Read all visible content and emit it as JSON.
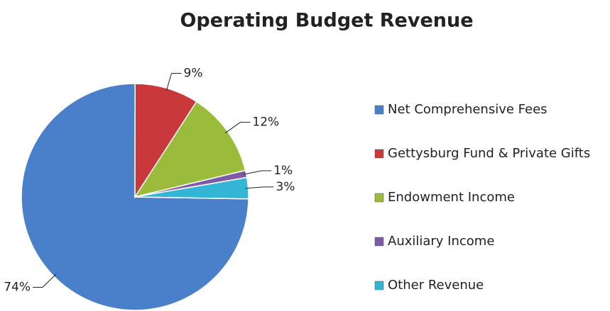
{
  "chart_data": {
    "type": "pie",
    "title": "Operating Budget Revenue",
    "categories": [
      "Net Comprehensive Fees",
      "Gettysburg Fund & Private Gifts",
      "Endowment Income",
      "Auxiliary Income",
      "Other Revenue"
    ],
    "values": [
      74,
      9,
      12,
      1,
      3
    ],
    "value_labels": [
      "74%",
      "9%",
      "12%",
      "1%",
      "3%"
    ],
    "colors": [
      "#4a7fc9",
      "#c9383a",
      "#9bbb3b",
      "#7d5aa6",
      "#33b6d6"
    ],
    "legend": "right"
  }
}
